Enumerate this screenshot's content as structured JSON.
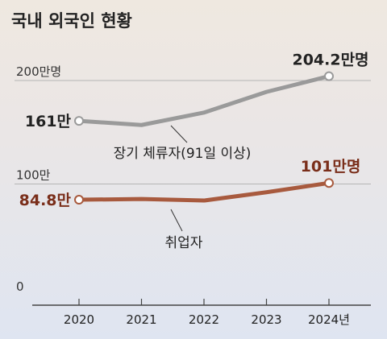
{
  "chart_data": {
    "type": "line",
    "title": "국내 외국인 현황",
    "x": [
      "2020",
      "2021",
      "2022",
      "2023",
      "2024년"
    ],
    "y_gridlines": [
      {
        "value": 200,
        "label": "200만명"
      },
      {
        "value": 100,
        "label": "100만"
      },
      {
        "value": 0,
        "label": "0"
      }
    ],
    "ylim": [
      0,
      215
    ],
    "series": [
      {
        "name": "장기 체류자(91일 이상)",
        "color": "#9a9a9a",
        "values": [
          161,
          157,
          169,
          189,
          204.2
        ],
        "start_label": "161만",
        "end_label": "204.2만명",
        "label_color": "#222222"
      },
      {
        "name": "취업자",
        "color": "#a85a3e",
        "values": [
          84.8,
          85.5,
          84,
          92,
          101
        ],
        "start_label": "84.8만",
        "end_label": "101만명",
        "label_color": "#7a2e1a"
      }
    ]
  }
}
